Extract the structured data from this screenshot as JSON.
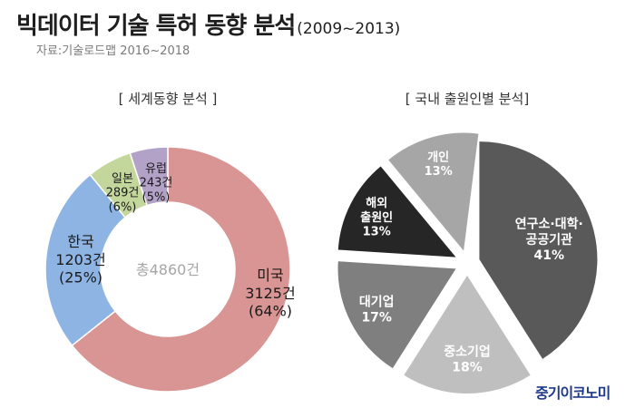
{
  "title": {
    "main": "빅데이터 기술 특허 동향 분석",
    "range": "(2009~2013)"
  },
  "source": "자료:기술로드맵 2016~2018",
  "logo": "중기이코노미",
  "colors": {
    "usa": "#d99593",
    "korea": "#8eb4e3",
    "japan": "#c3d69b",
    "europe": "#b3a2c7",
    "research": "#595959",
    "sme": "#bfbfbf",
    "large": "#7f7f7f",
    "foreign": "#262626",
    "individual": "#a6a6a6"
  },
  "chart_data": [
    {
      "type": "pie",
      "style": "donut",
      "title": "[ 세계동향 분석 ]",
      "center_label": "총4860건",
      "slices": [
        {
          "key": "usa",
          "lines": [
            "미국",
            "3125건",
            "(64%)"
          ],
          "count": 3125,
          "percent": 64
        },
        {
          "key": "korea",
          "lines": [
            "한국",
            "1203건",
            "(25%)"
          ],
          "count": 1203,
          "percent": 25
        },
        {
          "key": "japan",
          "lines": [
            "일본",
            "289건",
            "(6%)"
          ],
          "count": 289,
          "percent": 6
        },
        {
          "key": "europe",
          "lines": [
            "유럽",
            "243건",
            "(5%)"
          ],
          "count": 243,
          "percent": 5
        }
      ]
    },
    {
      "type": "pie",
      "style": "exploded",
      "title": "[ 국내 출원인별 분석]",
      "slices": [
        {
          "key": "research",
          "lines": [
            "연구소·대학·",
            "공공기관",
            "41%"
          ],
          "percent": 41
        },
        {
          "key": "sme",
          "lines": [
            "중소기업",
            "18%"
          ],
          "percent": 18
        },
        {
          "key": "large",
          "lines": [
            "대기업",
            "17%"
          ],
          "percent": 17
        },
        {
          "key": "foreign",
          "lines": [
            "해외",
            "출원인",
            "13%"
          ],
          "percent": 13
        },
        {
          "key": "individual",
          "lines": [
            "개인",
            "13%"
          ],
          "percent": 13
        }
      ]
    }
  ]
}
